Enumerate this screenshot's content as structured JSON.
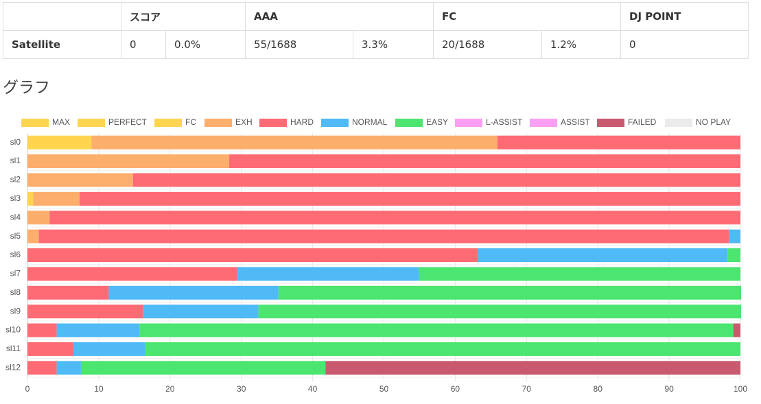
{
  "table": {
    "header": [
      "スコア",
      "AAA",
      "FC",
      "DJ POINT"
    ],
    "row": {
      "name": "Satellite",
      "cells": [
        "0",
        "0.0%",
        "55/1688",
        "3.3%",
        "20/1688",
        "1.2%",
        "0"
      ]
    }
  },
  "heading": "グラフ",
  "chart_data": {
    "type": "stacked-bar-horizontal",
    "categories": [
      "sl0",
      "sl1",
      "sl2",
      "sl3",
      "sl4",
      "sl5",
      "sl6",
      "sl7",
      "sl8",
      "sl9",
      "sl10",
      "sl11",
      "sl12"
    ],
    "series": [
      {
        "name": "MAX",
        "color": "#ffd54f",
        "values": [
          0,
          0,
          0,
          0,
          0,
          0,
          0,
          0,
          0,
          0,
          0,
          0,
          0
        ]
      },
      {
        "name": "PERFECT",
        "color": "#ffd54f",
        "values": [
          0,
          0,
          0,
          0,
          0,
          0,
          0,
          0,
          0,
          0,
          0,
          0,
          0
        ]
      },
      {
        "name": "FC",
        "color": "#ffd54f",
        "values": [
          9.0,
          0,
          0,
          0.8,
          0,
          0,
          0,
          0,
          0,
          0,
          0,
          0,
          0
        ]
      },
      {
        "name": "EXH",
        "color": "#fcae6c",
        "values": [
          56.9,
          28.3,
          14.8,
          6.5,
          3.1,
          1.6,
          0,
          0,
          0,
          0,
          0,
          0,
          0
        ]
      },
      {
        "name": "HARD",
        "color": "#ff6b74",
        "values": [
          34.1,
          71.7,
          85.2,
          92.7,
          96.9,
          96.8,
          63.2,
          29.4,
          11.4,
          16.2,
          4.1,
          6.4,
          4.1
        ]
      },
      {
        "name": "NORMAL",
        "color": "#4fbaf6",
        "values": [
          0,
          0,
          0,
          0,
          0,
          1.6,
          35.0,
          25.5,
          23.8,
          16.2,
          11.6,
          10.1,
          3.4
        ]
      },
      {
        "name": "EASY",
        "color": "#4be56f",
        "values": [
          0,
          0,
          0,
          0,
          0,
          0,
          1.8,
          45.1,
          64.9,
          67.7,
          83.3,
          83.5,
          34.3
        ]
      },
      {
        "name": "L-ASSIST",
        "color": "#f9a0f4",
        "values": [
          0,
          0,
          0,
          0,
          0,
          0,
          0,
          0,
          0,
          0,
          0,
          0,
          0
        ]
      },
      {
        "name": "ASSIST",
        "color": "#f9a0f4",
        "values": [
          0,
          0,
          0,
          0,
          0,
          0,
          0,
          0,
          0,
          0,
          0,
          0,
          0
        ]
      },
      {
        "name": "FAILED",
        "color": "#c9596f",
        "values": [
          0,
          0,
          0,
          0,
          0,
          0,
          0,
          0,
          0,
          0,
          1.0,
          0,
          58.2
        ]
      },
      {
        "name": "NO PLAY",
        "color": "#ebebeb",
        "values": [
          0,
          0,
          0,
          0,
          0,
          0,
          0,
          0,
          0,
          0,
          0,
          0,
          0
        ]
      }
    ],
    "xlim": [
      0,
      100
    ],
    "xticks": [
      0,
      10,
      20,
      30,
      40,
      50,
      60,
      70,
      80,
      90,
      100
    ],
    "grid": true
  }
}
